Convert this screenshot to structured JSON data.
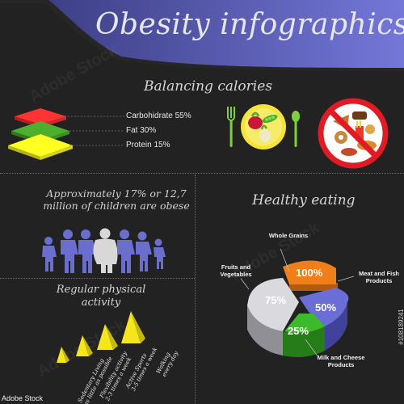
{
  "header": {
    "title": "Obesity infographics",
    "band_colors": [
      "#3d3f86",
      "#7477d8"
    ]
  },
  "balancing": {
    "title": "Balancing calories",
    "layers": [
      {
        "label": "Carbohidrate 55%",
        "color": "#ff3333"
      },
      {
        "label": "Fat 30%",
        "color": "#4caf2e"
      },
      {
        "label": "Protein 15%",
        "color": "#ffff22"
      }
    ],
    "healthy_plate_icon": "healthy-plate-icon",
    "junk_food_ban_icon": "no-junk-food-icon"
  },
  "children": {
    "text": "Approximately 17% or 12,7 million of children are obese",
    "people_colors": [
      "#6a6ecc",
      "#d8d8d8"
    ]
  },
  "activity": {
    "title": "Regular physical activity",
    "levels": [
      {
        "label_line1": "Walking",
        "label_line2": "every day"
      },
      {
        "label_line1": "Active Sports",
        "label_line2": "3-5 times a week"
      },
      {
        "label_line1": "Flexibility activity",
        "label_line2": "2-3 times a week"
      },
      {
        "label_line1": "Sedentary Living",
        "label_line2": "as little as possible"
      }
    ],
    "color": "#f5e61a"
  },
  "healthy_eating": {
    "title": "Healthy eating",
    "segments": [
      {
        "label": "Whole Grains",
        "value": "100%",
        "color": "#f07f1a"
      },
      {
        "label": "Meat and Fish Products",
        "value": "50%",
        "color": "#6b6ed6"
      },
      {
        "label": "Milk and Cheese Products",
        "value": "25%",
        "color": "#3dba2b"
      },
      {
        "label": "Fruits and Vegetables",
        "value": "75%",
        "color": "#d9d9de"
      }
    ]
  },
  "watermark": "Adobe Stock",
  "stock_id": "#108189241",
  "stock_logo": "Adobe Stock"
}
